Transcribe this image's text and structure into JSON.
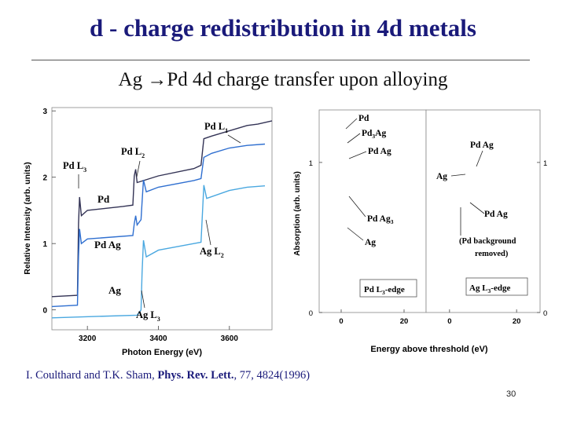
{
  "slide": {
    "title": "d - charge redistribution in 4d metals",
    "subtitle_from": "Ag ",
    "subtitle_arrow": "→",
    "subtitle_rest": "Pd 4d charge transfer upon alloying",
    "reference_authors": "I. Coulthard and T.K. Sham, ",
    "reference_journal": "Phys. Rev. Lett.",
    "reference_details": ", 77, 4824(1996)",
    "page_number": "30"
  },
  "colors": {
    "title": "#1a1a7a",
    "pd_curve": "#333355",
    "pdag_curve": "#2f6fd0",
    "ag_curve": "#4aa8e0",
    "green": "#3f9a3f",
    "orange": "#d08a2e",
    "purple": "#6a4ea0"
  },
  "chart_data": [
    {
      "type": "line",
      "ylabel": "Relative Intensity (arb. units)",
      "xlabel": "Photon Energy (eV)",
      "xlim": [
        3100,
        3720
      ],
      "ylim": [
        -0.3,
        3.05
      ],
      "xticks": [
        "3200",
        "3400",
        "3600"
      ],
      "yticks": [
        "0",
        "1",
        "2",
        "3"
      ],
      "annotations": [
        "Pd L",
        "Pd L",
        "Pd L",
        "Ag L",
        "Ag L",
        "Pd",
        "Pd Ag",
        "Ag"
      ],
      "annotation_subscripts": [
        "1",
        "2",
        "3",
        "2",
        "3"
      ],
      "series": [
        {
          "name": "Pd",
          "x": [
            3100,
            3172,
            3175,
            3178,
            3183,
            3200,
            3300,
            3328,
            3332,
            3336,
            3340,
            3400,
            3500,
            3520,
            3528,
            3550,
            3600,
            3650,
            3680,
            3720
          ],
          "y": [
            0.2,
            0.22,
            1.3,
            1.7,
            1.42,
            1.5,
            1.56,
            1.58,
            2.02,
            2.12,
            1.92,
            2.02,
            2.13,
            2.18,
            2.58,
            2.62,
            2.7,
            2.78,
            2.8,
            2.85
          ]
        },
        {
          "name": "Pd Ag",
          "x": [
            3100,
            3172,
            3175,
            3178,
            3183,
            3200,
            3328,
            3332,
            3336,
            3340,
            3351,
            3354,
            3358,
            3366,
            3400,
            3500,
            3520,
            3528,
            3550,
            3600,
            3650,
            3700
          ],
          "y": [
            0.05,
            0.07,
            0.8,
            1.22,
            1.0,
            1.07,
            1.12,
            1.3,
            1.42,
            1.28,
            1.36,
            1.62,
            1.96,
            1.78,
            1.85,
            1.95,
            1.98,
            2.3,
            2.36,
            2.44,
            2.48,
            2.5
          ]
        },
        {
          "name": "Ag",
          "x": [
            3100,
            3340,
            3351,
            3354,
            3358,
            3366,
            3400,
            3500,
            3520,
            3524,
            3528,
            3536,
            3600,
            3650,
            3700
          ],
          "y": [
            -0.12,
            -0.08,
            0.0,
            0.55,
            1.05,
            0.8,
            0.9,
            1.0,
            1.02,
            1.45,
            1.88,
            1.68,
            1.8,
            1.85,
            1.87
          ]
        }
      ]
    },
    {
      "type": "line",
      "ylabel": "Absorption (arb. units)",
      "xlabel": "Energy above threshold (eV)",
      "panels": [
        "Pd L3-edge",
        "Ag L3-edge"
      ],
      "panel_labels": [
        "Pd L",
        "-edge",
        "Ag L",
        "-edge"
      ],
      "panel_label_subscript": "3",
      "xlim_pd": [
        -7,
        27
      ],
      "xlim_ag": [
        -7,
        27
      ],
      "ylim": [
        0,
        1.35
      ],
      "xticks_pd": [
        "0",
        "20"
      ],
      "xticks_ag": [
        "0",
        "20"
      ],
      "yticks": [
        "0",
        "1"
      ],
      "right_yticks": [
        "1",
        "0"
      ],
      "annotations_pd": [
        "Pd",
        "Pd",
        "Ag",
        "Pd Ag",
        "Pd Ag",
        "Ag"
      ],
      "annotation_subscripts_pd": [
        "3",
        "3"
      ],
      "annotations_ag": [
        "Pd Ag",
        "Ag",
        "Pd Ag",
        "(Pd background",
        "removed)"
      ],
      "series_pd": [
        {
          "name": "Pd",
          "x": [
            -6,
            -2,
            0,
            1,
            2,
            4,
            6,
            8,
            10,
            12,
            14,
            16,
            18,
            20,
            22,
            24,
            26
          ],
          "y": [
            0.02,
            0.06,
            0.7,
            1.25,
            1.28,
            1.05,
            1.12,
            1.02,
            1.0,
            1.05,
            1.15,
            1.03,
            1.0,
            1.02,
            1.1,
            1.02,
            1.0
          ]
        },
        {
          "name": "Pd3Ag",
          "x": [
            -6,
            -2,
            0,
            1,
            2,
            4,
            6,
            8,
            10,
            12,
            14,
            16,
            18,
            20,
            22,
            24,
            26
          ],
          "y": [
            0.02,
            0.05,
            0.68,
            1.18,
            1.2,
            1.04,
            1.08,
            1.02,
            1.0,
            1.04,
            1.12,
            1.04,
            0.99,
            1.02,
            1.08,
            1.02,
            1.01
          ]
        },
        {
          "name": "PdAg",
          "x": [
            -6,
            -2,
            0,
            1,
            2,
            4,
            6,
            8,
            10,
            12,
            14,
            16,
            18,
            20,
            22,
            24,
            26
          ],
          "y": [
            0.02,
            0.04,
            0.62,
            1.1,
            1.12,
            1.02,
            1.06,
            1.0,
            1.0,
            1.03,
            1.08,
            1.04,
            1.0,
            1.02,
            1.06,
            1.02,
            1.01
          ]
        },
        {
          "name": "PdAg3",
          "x": [
            -6,
            -2,
            0,
            1,
            2,
            4,
            6,
            8,
            10,
            12,
            14,
            16,
            18,
            20,
            22,
            24,
            26
          ],
          "y": [
            0.02,
            0.04,
            0.55,
            1.02,
            1.05,
            1.0,
            1.02,
            0.99,
            0.99,
            1.02,
            1.05,
            1.02,
            1.0,
            1.01,
            1.04,
            1.01,
            1.0
          ]
        },
        {
          "name": "Ag",
          "x": [
            -6,
            -2,
            0,
            1,
            2,
            4,
            6,
            8,
            10,
            12,
            14,
            16,
            18,
            20,
            22,
            24,
            26
          ],
          "y": [
            0.02,
            0.03,
            0.45,
            0.9,
            0.98,
            0.97,
            1.0,
            0.98,
            0.99,
            1.01,
            1.03,
            1.01,
            1.0,
            1.01,
            1.02,
            1.01,
            1.0
          ]
        }
      ],
      "series_ag": [
        {
          "name": "PdAg",
          "x": [
            -6,
            -2,
            0,
            2,
            4,
            6,
            8,
            10,
            12,
            14,
            16,
            18,
            20,
            22,
            24,
            26
          ],
          "y": [
            0.02,
            0.04,
            0.45,
            0.8,
            0.9,
            0.97,
            1.0,
            1.02,
            1.05,
            1.07,
            1.08,
            1.1,
            1.12,
            1.15,
            1.2,
            1.15
          ]
        },
        {
          "name": "Ag",
          "x": [
            -6,
            -2,
            0,
            2,
            4,
            6,
            8,
            10,
            12,
            14,
            16,
            18,
            20,
            22,
            24,
            26
          ],
          "y": [
            0.02,
            0.04,
            0.48,
            0.85,
            0.95,
            1.02,
            1.05,
            1.06,
            1.07,
            1.06,
            1.08,
            1.15,
            1.22,
            1.18,
            1.05,
            1.0
          ]
        },
        {
          "name": "PdAg (Pd background removed)",
          "x": [
            -6,
            -2,
            0,
            2,
            4,
            6,
            8,
            10,
            12,
            14,
            16,
            18,
            20,
            22,
            24,
            26
          ],
          "y": [
            0.02,
            0.04,
            0.42,
            0.78,
            0.88,
            0.93,
            0.96,
            0.98,
            1.0,
            1.02,
            1.04,
            1.07,
            1.1,
            1.12,
            1.14,
            1.1
          ]
        }
      ]
    }
  ]
}
